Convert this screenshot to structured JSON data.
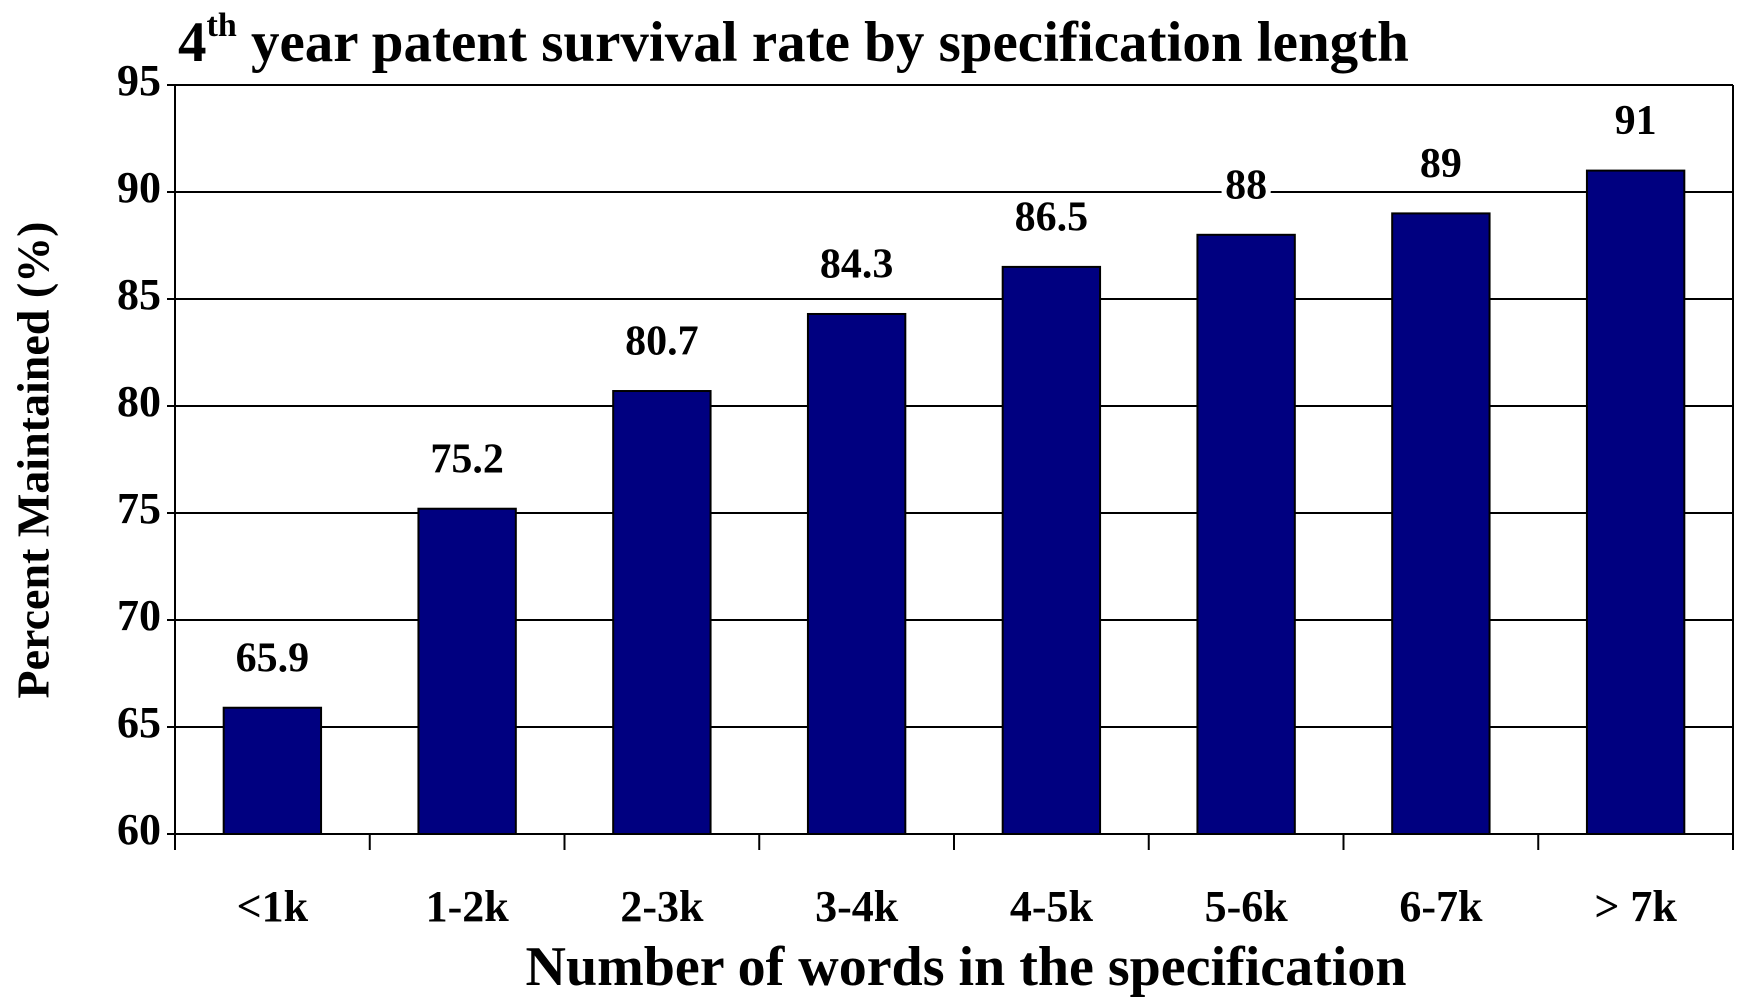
{
  "chart_data": {
    "type": "bar",
    "title": [
      "4",
      "th",
      " year patent survival rate by specification length"
    ],
    "x_label": "Number of words in the specification",
    "y_label": "Percent Maintained (%)",
    "categories": [
      "<1k",
      "1-2k",
      "2-3k",
      "3-4k",
      "4-5k",
      "5-6k",
      "6-7k",
      "> 7k"
    ],
    "values": [
      65.9,
      75.2,
      80.7,
      84.3,
      86.5,
      88,
      89,
      91
    ],
    "color": "#000080",
    "ylim": [
      60,
      95
    ],
    "yticks": [
      60,
      65,
      70,
      75,
      80,
      85,
      90,
      95
    ],
    "grid": true
  }
}
